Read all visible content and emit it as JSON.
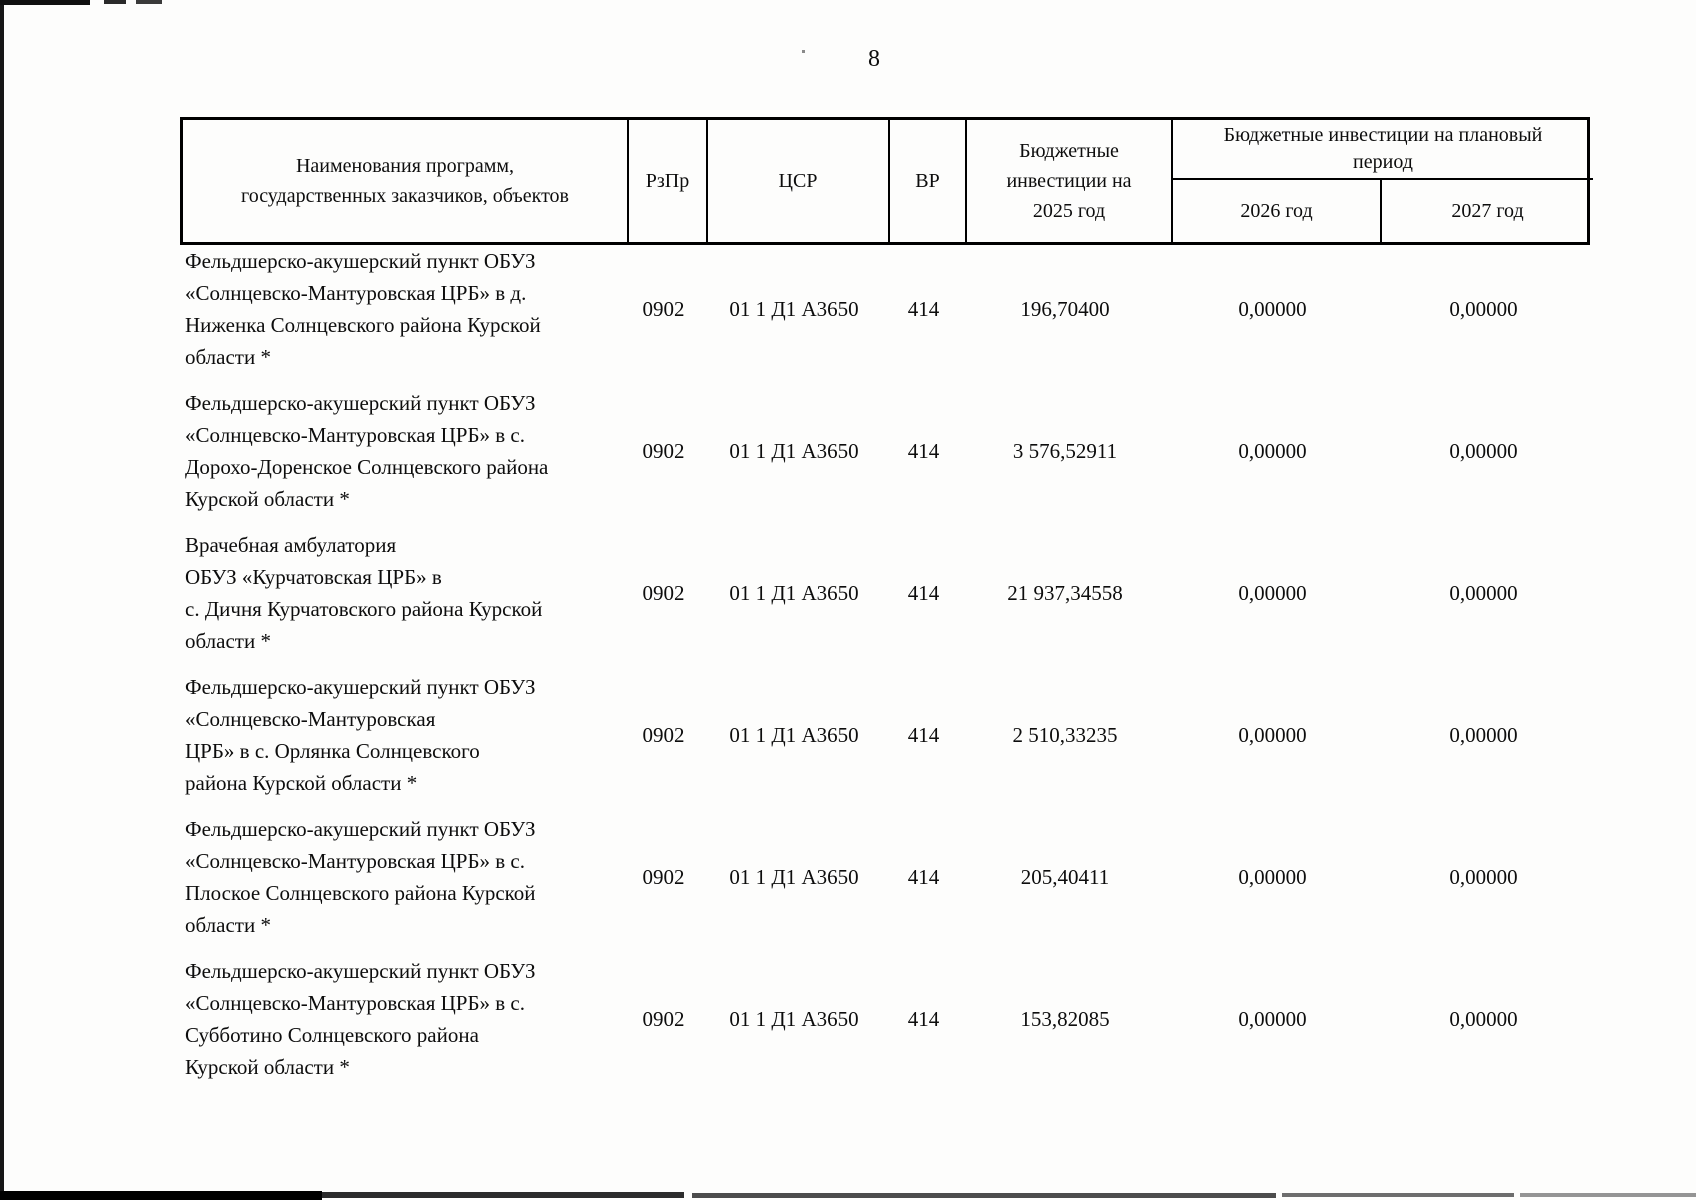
{
  "page": {
    "number": "8"
  },
  "table": {
    "header": {
      "name": "Наименования программ,\nгосударственных заказчиков, объектов",
      "rzpr": "РзПр",
      "csr": "ЦСР",
      "vr": "ВР",
      "y2025": "Бюджетные\nинвестиции на\n2025 год",
      "planned": "Бюджетные инвестиции на плановый\nпериод",
      "y2026": "2026 год",
      "y2027": "2027 год"
    },
    "rows": [
      {
        "name": "Фельдшерско-акушерский пункт ОБУЗ\n«Солнцевско-Мантуровская ЦРБ» в д.\nНиженка Солнцевского района Курской\nобласти *",
        "rzpr": "0902",
        "csr": "01 1 Д1 А3650",
        "vr": "414",
        "y2025": "196,70400",
        "y2026": "0,00000",
        "y2027": "0,00000"
      },
      {
        "name": "Фельдшерско-акушерский пункт ОБУЗ\n«Солнцевско-Мантуровская ЦРБ» в  с.\nДорохо-Доренское Солнцевского района\nКурской области *",
        "rzpr": "0902",
        "csr": "01 1 Д1 А3650",
        "vr": "414",
        "y2025": "3 576,52911",
        "y2026": "0,00000",
        "y2027": "0,00000"
      },
      {
        "name": "Врачебная амбулатория\nОБУЗ «Курчатовская ЦРБ» в\nс. Дичня Курчатовского района Курской\nобласти *",
        "rzpr": "0902",
        "csr": "01 1 Д1 А3650",
        "vr": "414",
        "y2025": "21 937,34558",
        "y2026": "0,00000",
        "y2027": "0,00000"
      },
      {
        "name": "Фельдшерско-акушерский пункт ОБУЗ\n«Солнцевско-Мантуровская\nЦРБ» в с. Орлянка Солнцевского\nрайона Курской области *",
        "rzpr": "0902",
        "csr": "01 1 Д1 А3650",
        "vr": "414",
        "y2025": "2 510,33235",
        "y2026": "0,00000",
        "y2027": "0,00000"
      },
      {
        "name": "Фельдшерско-акушерский пункт ОБУЗ\n«Солнцевско-Мантуровская ЦРБ» в с.\nПлоское Солнцевского района Курской\nобласти *",
        "rzpr": "0902",
        "csr": "01 1 Д1 А3650",
        "vr": "414",
        "y2025": "205,40411",
        "y2026": "0,00000",
        "y2027": "0,00000"
      },
      {
        "name": "Фельдшерско-акушерский пункт ОБУЗ\n«Солнцевско-Мантуровская ЦРБ» в с.\nСубботино Солнцевского района\nКурской области *",
        "rzpr": "0902",
        "csr": "01 1 Д1 А3650",
        "vr": "414",
        "y2025": "153,82085",
        "y2026": "0,00000",
        "y2027": "0,00000"
      }
    ]
  }
}
